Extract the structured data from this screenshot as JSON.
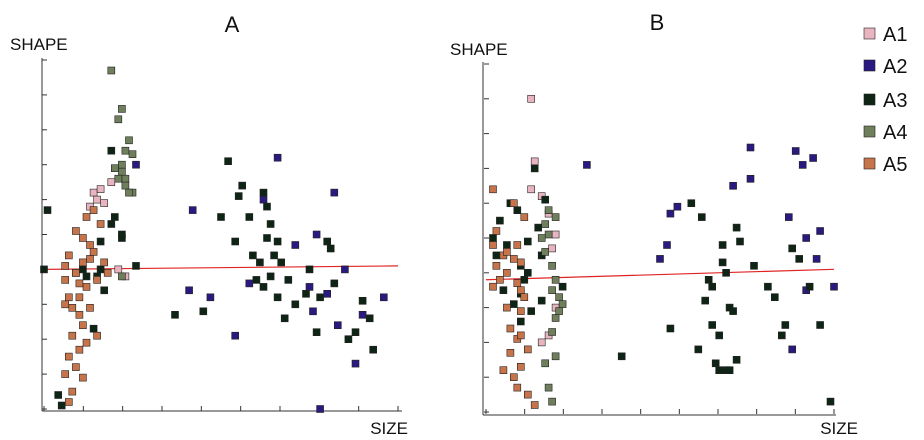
{
  "chart_data": [
    {
      "type": "scatter",
      "title": "A",
      "xlabel": "SIZE",
      "ylabel": "SHAPE",
      "xlim": [
        0,
        10
      ],
      "ylim": [
        0,
        10
      ],
      "x_ticks": 9,
      "y_ticks": 10,
      "grid": false,
      "fit_line": {
        "x": [
          0,
          10
        ],
        "y": [
          4.0,
          4.1
        ]
      },
      "series": [
        {
          "name": "A1",
          "color": "#e8b4c0",
          "points": [
            [
              1.4,
              6.2
            ],
            [
              1.6,
              6.3
            ],
            [
              1.9,
              6.5
            ],
            [
              1.7,
              5.9
            ],
            [
              2.1,
              4.0
            ],
            [
              1.3,
              5.8
            ],
            [
              2.3,
              3.8
            ],
            [
              1.5,
              6.0
            ]
          ]
        },
        {
          "name": "A2",
          "color": "#2a1a80",
          "points": [
            [
              2.6,
              7.0
            ],
            [
              4.2,
              5.7
            ],
            [
              4.1,
              3.4
            ],
            [
              4.7,
              3.2
            ],
            [
              5.4,
              2.1
            ],
            [
              5.8,
              3.6
            ],
            [
              6.2,
              6.0
            ],
            [
              6.6,
              7.2
            ],
            [
              7.1,
              4.7
            ],
            [
              7.7,
              5.0
            ],
            [
              7.5,
              3.5
            ],
            [
              8.0,
              3.3
            ],
            [
              8.2,
              6.2
            ],
            [
              8.5,
              4.0
            ],
            [
              8.3,
              2.4
            ],
            [
              9.0,
              2.7
            ],
            [
              9.6,
              3.2
            ],
            [
              8.8,
              1.3
            ],
            [
              7.8,
              0.0
            ],
            [
              7.6,
              2.8
            ]
          ]
        },
        {
          "name": "A3",
          "color": "#0e2414",
          "points": [
            [
              0.0,
              4.0
            ],
            [
              0.1,
              5.7
            ],
            [
              0.4,
              0.4
            ],
            [
              0.5,
              0.1
            ],
            [
              1.1,
              4.0
            ],
            [
              1.2,
              3.8
            ],
            [
              1.5,
              3.8
            ],
            [
              1.4,
              2.3
            ],
            [
              1.6,
              4.0
            ],
            [
              1.7,
              3.4
            ],
            [
              1.6,
              4.8
            ],
            [
              1.9,
              5.3
            ],
            [
              2.2,
              5.0
            ],
            [
              2.0,
              5.5
            ],
            [
              2.2,
              4.9
            ],
            [
              1.9,
              7.4
            ],
            [
              2.6,
              4.1
            ],
            [
              3.7,
              2.7
            ],
            [
              4.5,
              2.8
            ],
            [
              5.0,
              5.5
            ],
            [
              5.2,
              7.1
            ],
            [
              5.5,
              6.1
            ],
            [
              5.4,
              4.8
            ],
            [
              5.6,
              6.4
            ],
            [
              5.8,
              5.5
            ],
            [
              5.9,
              4.4
            ],
            [
              6.1,
              4.2
            ],
            [
              6.0,
              3.7
            ],
            [
              6.2,
              3.5
            ],
            [
              6.2,
              6.2
            ],
            [
              6.3,
              5.8
            ],
            [
              6.4,
              5.3
            ],
            [
              6.3,
              4.9
            ],
            [
              6.5,
              4.4
            ],
            [
              6.6,
              4.8
            ],
            [
              6.4,
              3.8
            ],
            [
              6.7,
              4.2
            ],
            [
              6.6,
              3.2
            ],
            [
              6.8,
              2.6
            ],
            [
              6.9,
              3.7
            ],
            [
              7.1,
              3.0
            ],
            [
              7.4,
              3.3
            ],
            [
              7.5,
              4.0
            ],
            [
              7.8,
              3.2
            ],
            [
              7.7,
              2.2
            ],
            [
              8.0,
              4.8
            ],
            [
              8.2,
              3.6
            ],
            [
              8.1,
              4.6
            ],
            [
              8.6,
              2.0
            ],
            [
              8.8,
              2.2
            ],
            [
              9.2,
              2.6
            ],
            [
              9.0,
              3.1
            ],
            [
              9.3,
              1.7
            ]
          ]
        },
        {
          "name": "A4",
          "color": "#6f7f5c",
          "points": [
            [
              1.9,
              9.7
            ],
            [
              2.2,
              8.6
            ],
            [
              2.1,
              8.3
            ],
            [
              2.3,
              7.4
            ],
            [
              2.2,
              7.0
            ],
            [
              2.5,
              7.3
            ],
            [
              2.4,
              7.7
            ],
            [
              2.3,
              6.6
            ],
            [
              2.2,
              6.8
            ],
            [
              2.5,
              6.2
            ],
            [
              2.3,
              6.4
            ],
            [
              2.1,
              6.6
            ],
            [
              2.4,
              6.2
            ],
            [
              2.0,
              6.9
            ],
            [
              2.2,
              3.8
            ]
          ]
        },
        {
          "name": "A5",
          "color": "#c8744a",
          "points": [
            [
              0.6,
              4.1
            ],
            [
              0.7,
              4.4
            ],
            [
              0.6,
              3.7
            ],
            [
              0.9,
              3.9
            ],
            [
              1.1,
              4.2
            ],
            [
              1.3,
              4.3
            ],
            [
              1.1,
              4.9
            ],
            [
              1.3,
              4.7
            ],
            [
              0.9,
              5.1
            ],
            [
              1.2,
              5.5
            ],
            [
              1.4,
              5.7
            ],
            [
              1.6,
              5.3
            ],
            [
              1.4,
              4.5
            ],
            [
              1.7,
              4.2
            ],
            [
              1.8,
              3.9
            ],
            [
              1.5,
              3.7
            ],
            [
              1.2,
              3.5
            ],
            [
              1.0,
              3.2
            ],
            [
              0.7,
              3.2
            ],
            [
              0.8,
              2.9
            ],
            [
              1.0,
              2.7
            ],
            [
              1.1,
              2.4
            ],
            [
              0.8,
              2.1
            ],
            [
              1.2,
              1.9
            ],
            [
              1.0,
              1.7
            ],
            [
              0.7,
              1.5
            ],
            [
              0.9,
              1.2
            ],
            [
              0.6,
              1.0
            ],
            [
              1.1,
              0.9
            ],
            [
              0.8,
              0.5
            ],
            [
              0.7,
              0.2
            ],
            [
              1.0,
              3.6
            ],
            [
              1.3,
              2.9
            ],
            [
              1.5,
              2.1
            ],
            [
              0.9,
              3.9
            ],
            [
              0.6,
              3.0
            ]
          ]
        }
      ]
    },
    {
      "type": "scatter",
      "title": "B",
      "xlabel": "SIZE",
      "ylabel": "SHAPE",
      "xlim": [
        0,
        10
      ],
      "ylim": [
        0,
        10
      ],
      "x_ticks": 9,
      "y_ticks": 10,
      "grid": false,
      "fit_line": {
        "x": [
          0,
          10
        ],
        "y": [
          3.8,
          4.1
        ]
      },
      "series": [
        {
          "name": "A1",
          "color": "#e8b4c0",
          "points": [
            [
              1.3,
              9.0
            ],
            [
              1.4,
              7.2
            ],
            [
              1.3,
              6.4
            ],
            [
              1.6,
              6.2
            ],
            [
              1.8,
              5.7
            ],
            [
              2.0,
              5.1
            ],
            [
              1.9,
              4.7
            ],
            [
              2.0,
              3.0
            ],
            [
              1.6,
              2.0
            ],
            [
              1.8,
              2.2
            ]
          ]
        },
        {
          "name": "A2",
          "color": "#2a1a80",
          "points": [
            [
              2.9,
              7.1
            ],
            [
              5.0,
              4.4
            ],
            [
              5.2,
              4.8
            ],
            [
              5.3,
              5.7
            ],
            [
              5.5,
              5.9
            ],
            [
              7.6,
              7.6
            ],
            [
              7.1,
              6.5
            ],
            [
              7.6,
              6.7
            ],
            [
              8.9,
              7.5
            ],
            [
              9.1,
              7.1
            ],
            [
              9.4,
              7.3
            ],
            [
              8.7,
              5.6
            ],
            [
              9.2,
              5.0
            ],
            [
              9.5,
              4.4
            ],
            [
              9.2,
              3.5
            ],
            [
              9.6,
              5.2
            ],
            [
              10.0,
              3.6
            ],
            [
              8.8,
              1.8
            ]
          ]
        },
        {
          "name": "A3",
          "color": "#0e2414",
          "points": [
            [
              0.2,
              5.0
            ],
            [
              0.4,
              5.5
            ],
            [
              0.3,
              4.5
            ],
            [
              0.5,
              3.5
            ],
            [
              0.6,
              4.8
            ],
            [
              0.7,
              6.0
            ],
            [
              0.9,
              5.8
            ],
            [
              1.0,
              4.2
            ],
            [
              1.2,
              4.9
            ],
            [
              1.0,
              3.4
            ],
            [
              1.1,
              3.8
            ],
            [
              1.4,
              7.0
            ],
            [
              1.5,
              5.3
            ],
            [
              1.7,
              6.1
            ],
            [
              1.6,
              4.5
            ],
            [
              1.6,
              3.2
            ],
            [
              1.3,
              2.9
            ],
            [
              1.0,
              2.6
            ],
            [
              0.8,
              3.1
            ],
            [
              1.2,
              4.0
            ],
            [
              2.2,
              3.6
            ],
            [
              3.9,
              1.6
            ],
            [
              5.3,
              2.4
            ],
            [
              5.9,
              6.0
            ],
            [
              6.2,
              5.6
            ],
            [
              6.3,
              3.2
            ],
            [
              6.1,
              1.8
            ],
            [
              6.4,
              3.8
            ],
            [
              6.5,
              3.6
            ],
            [
              6.8,
              4.3
            ],
            [
              6.9,
              4.0
            ],
            [
              6.5,
              2.5
            ],
            [
              6.7,
              2.2
            ],
            [
              6.6,
              1.4
            ],
            [
              6.7,
              1.2
            ],
            [
              6.9,
              1.2
            ],
            [
              7.0,
              1.2
            ],
            [
              7.2,
              1.5
            ],
            [
              7.1,
              2.9
            ],
            [
              7.2,
              5.3
            ],
            [
              7.3,
              4.9
            ],
            [
              7.0,
              3.0
            ],
            [
              6.8,
              4.8
            ],
            [
              7.7,
              4.2
            ],
            [
              8.1,
              3.6
            ],
            [
              8.3,
              3.3
            ],
            [
              8.5,
              2.2
            ],
            [
              8.6,
              2.5
            ],
            [
              8.8,
              4.7
            ],
            [
              9.0,
              4.4
            ],
            [
              9.3,
              3.6
            ],
            [
              9.6,
              2.5
            ],
            [
              9.9,
              0.3
            ]
          ]
        },
        {
          "name": "A4",
          "color": "#6f7f5c",
          "points": [
            [
              1.7,
              4.6
            ],
            [
              1.9,
              4.2
            ],
            [
              2.0,
              3.8
            ],
            [
              2.1,
              3.3
            ],
            [
              2.0,
              2.7
            ],
            [
              2.1,
              2.9
            ],
            [
              2.2,
              3.1
            ],
            [
              1.9,
              3.5
            ],
            [
              1.8,
              5.1
            ],
            [
              1.7,
              5.4
            ],
            [
              1.8,
              5.8
            ],
            [
              2.0,
              5.6
            ],
            [
              1.9,
              2.3
            ],
            [
              2.0,
              1.6
            ],
            [
              1.8,
              0.7
            ],
            [
              1.9,
              0.3
            ],
            [
              1.7,
              1.4
            ],
            [
              1.6,
              5.0
            ]
          ]
        },
        {
          "name": "A5",
          "color": "#c8744a",
          "points": [
            [
              0.2,
              6.4
            ],
            [
              0.3,
              5.2
            ],
            [
              0.2,
              4.8
            ],
            [
              0.5,
              4.5
            ],
            [
              0.3,
              4.2
            ],
            [
              0.6,
              4.0
            ],
            [
              0.4,
              3.8
            ],
            [
              0.2,
              3.6
            ],
            [
              0.6,
              4.6
            ],
            [
              0.8,
              4.4
            ],
            [
              0.9,
              4.8
            ],
            [
              1.0,
              4.3
            ],
            [
              1.1,
              5.6
            ],
            [
              0.8,
              6.0
            ],
            [
              0.9,
              3.7
            ],
            [
              1.0,
              3.5
            ],
            [
              0.7,
              2.4
            ],
            [
              1.0,
              2.9
            ],
            [
              1.1,
              3.3
            ],
            [
              0.9,
              2.1
            ],
            [
              1.0,
              2.2
            ],
            [
              1.2,
              1.8
            ],
            [
              0.7,
              1.7
            ],
            [
              1.0,
              1.3
            ],
            [
              0.8,
              1.0
            ],
            [
              0.9,
              0.7
            ],
            [
              1.2,
              0.5
            ],
            [
              1.4,
              0.2
            ],
            [
              0.5,
              1.2
            ],
            [
              0.6,
              3.0
            ]
          ]
        }
      ]
    }
  ],
  "legend": {
    "placement": "right",
    "items": [
      {
        "label": "A1",
        "color": "#e8b4c0"
      },
      {
        "label": "A2",
        "color": "#2a1a80"
      },
      {
        "label": "A3",
        "color": "#0e2414"
      },
      {
        "label": "A4",
        "color": "#6f7f5c"
      },
      {
        "label": "A5",
        "color": "#c8744a"
      }
    ]
  }
}
